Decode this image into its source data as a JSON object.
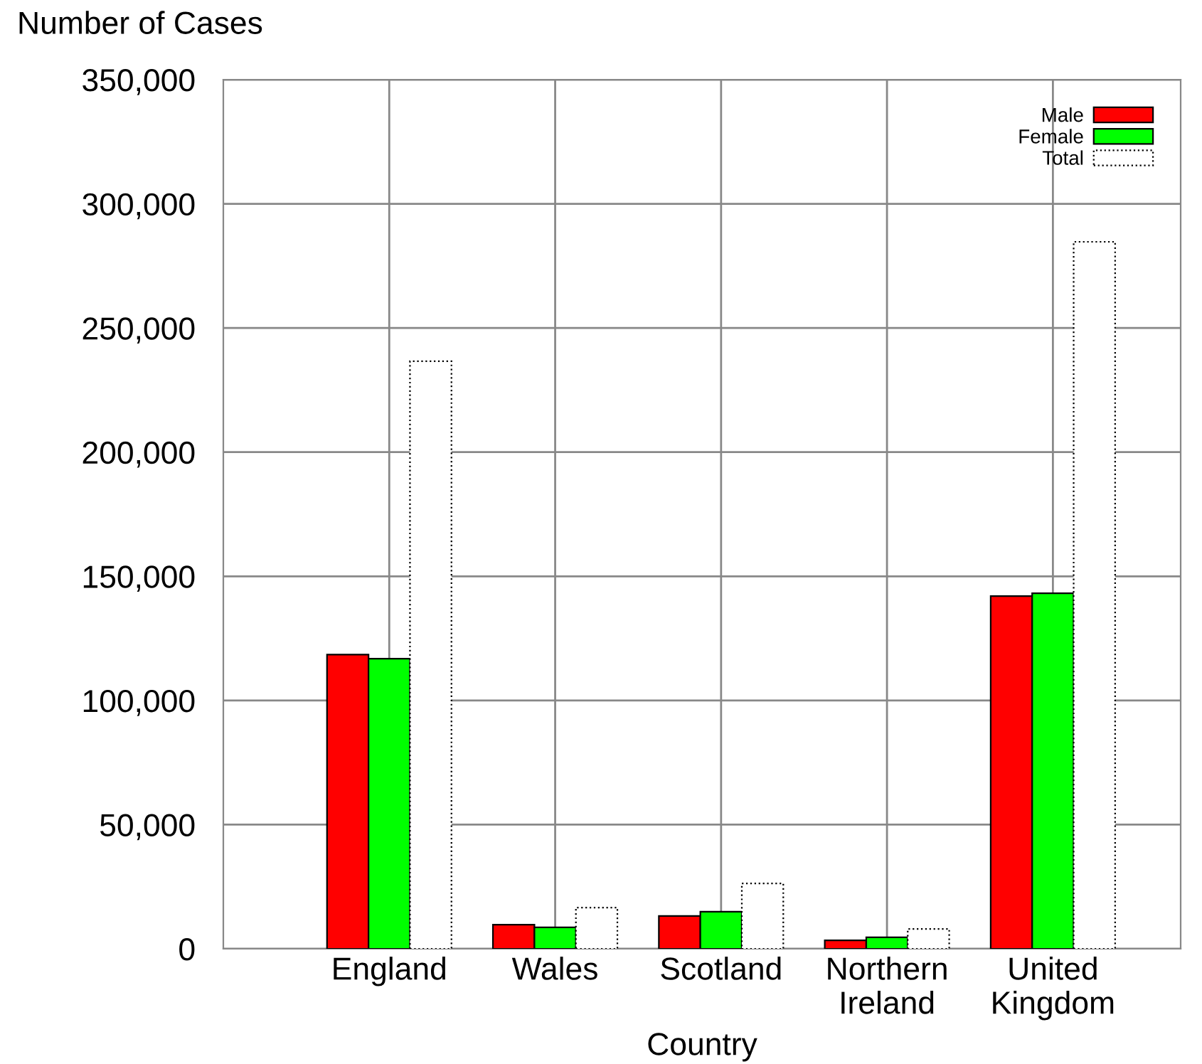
{
  "chart_data": {
    "type": "bar",
    "xlabel": "Country",
    "ylabel": "Number of Cases",
    "categories": [
      "England",
      "Wales",
      "Scotland",
      "Northern\nIreland",
      "United\nKingdom"
    ],
    "series": [
      {
        "name": "Male",
        "color": "#ff0000",
        "values": [
          118500,
          9700,
          13200,
          3400,
          142000
        ]
      },
      {
        "name": "Female",
        "color": "#00ff00",
        "values": [
          116800,
          8600,
          14900,
          4600,
          143200
        ]
      },
      {
        "name": "Total",
        "color": "#ffffff",
        "line_style": "dotted",
        "values": [
          236600,
          16600,
          26300,
          8000,
          284700
        ]
      }
    ],
    "ylim": [
      0,
      350000
    ],
    "yticks": [
      {
        "value": 0,
        "label": "0"
      },
      {
        "value": 50000,
        "label": "50,000"
      },
      {
        "value": 100000,
        "label": "100,000"
      },
      {
        "value": 150000,
        "label": "150,000"
      },
      {
        "value": 200000,
        "label": "200,000"
      },
      {
        "value": 250000,
        "label": "250,000"
      },
      {
        "value": 300000,
        "label": "300,000"
      },
      {
        "value": 350000,
        "label": "350,000"
      }
    ],
    "grid": true,
    "legend": "top right"
  }
}
